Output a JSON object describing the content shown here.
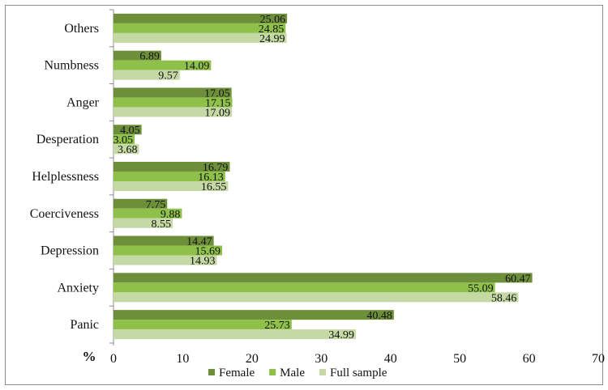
{
  "chart_data": {
    "type": "bar",
    "orientation": "horizontal",
    "categories": [
      "Others",
      "Numbness",
      "Anger",
      "Desperation",
      "Helplessness",
      "Coerciveness",
      "Depression",
      "Anxiety",
      "Panic"
    ],
    "series": [
      {
        "name": "Female",
        "color": "#6e8f3a",
        "values": [
          25.06,
          6.89,
          17.05,
          4.05,
          16.79,
          7.75,
          14.47,
          60.47,
          40.48
        ]
      },
      {
        "name": "Male",
        "color": "#8fc04a",
        "values": [
          24.85,
          14.09,
          17.15,
          3.05,
          16.13,
          9.88,
          15.69,
          55.09,
          25.73
        ]
      },
      {
        "name": "Full sample",
        "color": "#c5d9a4",
        "values": [
          24.99,
          9.57,
          17.09,
          3.68,
          16.55,
          8.55,
          14.93,
          58.46,
          34.99
        ]
      }
    ],
    "value_labels": {
      "Female": [
        "25.06",
        "6.89",
        "17.05",
        "4.05",
        "16.79",
        "7.75",
        "14.47",
        "60.47",
        "40.48"
      ],
      "Male": [
        "24.85",
        "14.09",
        "17.15",
        "3.05",
        "16.13",
        "9.88",
        "15.69",
        "55.09",
        "25.73"
      ],
      "Full sample": [
        "24.99",
        "9.57",
        "17.09",
        "3.68",
        "16.55",
        "8.55",
        "14.93",
        "58.46",
        "34.99"
      ]
    },
    "xlim": [
      0,
      70
    ],
    "xticks": [
      0,
      10,
      20,
      30,
      40,
      50,
      60,
      70
    ],
    "xtick_labels": [
      "0",
      "10",
      "20",
      "30",
      "40",
      "50",
      "60",
      "70"
    ],
    "axis_unit_label": "%",
    "grid": false,
    "legend_position": "bottom",
    "title": "",
    "xlabel": "",
    "ylabel": ""
  }
}
